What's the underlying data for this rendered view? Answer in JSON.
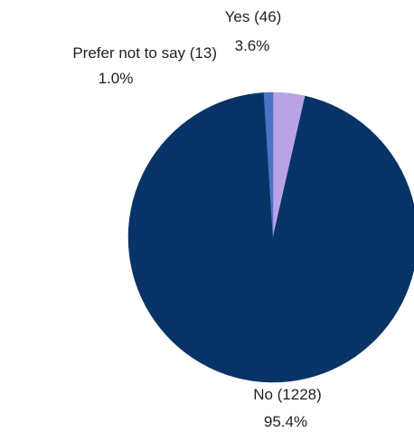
{
  "chart_data": {
    "type": "pie",
    "title": "",
    "slices": [
      {
        "label": "Yes (46)",
        "percent_label": "3.6%",
        "count": 46,
        "percent": 3.6,
        "color": "#b9a3e6"
      },
      {
        "label": "No (1228)",
        "percent_label": "95.4%",
        "count": 1228,
        "percent": 95.4,
        "color": "#083366"
      },
      {
        "label": "Prefer not to say (13)",
        "percent_label": "1.0%",
        "count": 13,
        "percent": 1.0,
        "color": "#4a73c8"
      }
    ],
    "start_angle": "12 o'clock",
    "direction": "clockwise",
    "legend": "none"
  }
}
